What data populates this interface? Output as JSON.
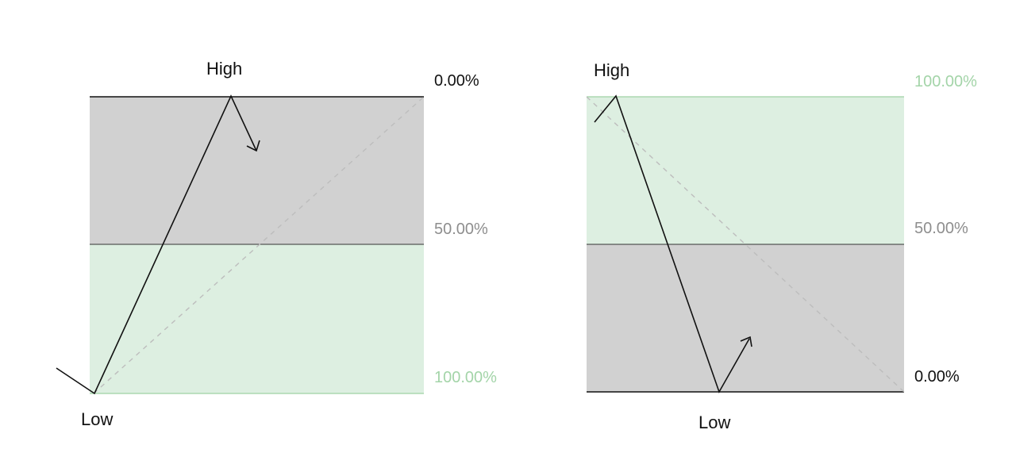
{
  "colors": {
    "premium_fill": "#d1d1d1",
    "discount_fill": "#ddefe1",
    "discount_text": "#a3d4a8",
    "mid_text": "#8e8e8e",
    "line": "#111111",
    "dashed": "#bdbdbd",
    "green_line": "#9ed2a3"
  },
  "diagrams": [
    {
      "variant": "bullish-swing",
      "high_label": "High",
      "low_label": "Low",
      "level_top": "0.00%",
      "level_mid": "50.00%",
      "level_bottom": "100.00%"
    },
    {
      "variant": "bearish-swing",
      "high_label": "High",
      "low_label": "Low",
      "level_top": "100.00%",
      "level_mid": "50.00%",
      "level_bottom": "0.00%"
    }
  ]
}
